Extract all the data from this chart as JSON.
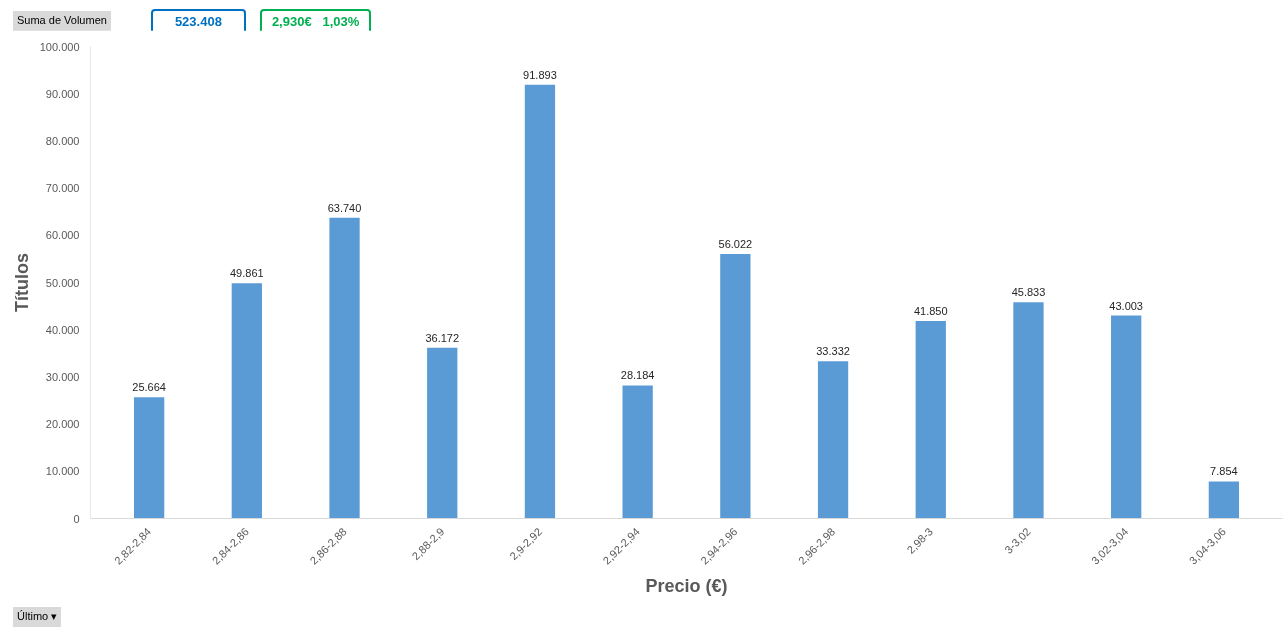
{
  "chart_data": {
    "type": "bar",
    "xlabel": "Precio (€)",
    "ylabel": "Títulos",
    "categories": [
      "2,82-2,84",
      "2,84-2,86",
      "2,86-2,88",
      "2,88-2,9",
      "2,9-2,92",
      "2,92-2,94",
      "2,94-2,96",
      "2,96-2,98",
      "2,98-3",
      "3-3,02",
      "3,02-3,04",
      "3,04-3,06"
    ],
    "values": [
      25664,
      49861,
      63740,
      36172,
      91893,
      28184,
      56022,
      33332,
      41850,
      45833,
      43003,
      7854
    ],
    "color": "#5b9bd5",
    "ylim": [
      0,
      100000
    ],
    "yticks": [
      0,
      {
        "value": 10000,
        "label": "10.000"
      },
      {
        "value": 20000,
        "label": "20.000"
      },
      {
        "value": 30000,
        "label": "30.000"
      },
      {
        "value": 40000,
        "label": "40.000"
      },
      {
        "value": 50000,
        "label": "50.000"
      },
      {
        "value": 60000,
        "label": "60.000"
      },
      {
        "value": 70000,
        "label": "70.000"
      },
      {
        "value": 80000,
        "label": "80.000"
      },
      {
        "value": 90000,
        "label": "90.000"
      },
      {
        "value": 100000,
        "label": "100.000"
      }
    ],
    "value_labels": [
      "25.664",
      "49.861",
      "63.740",
      "36.172",
      "91.893",
      "28.184",
      "56.022",
      "33.332",
      "41.850",
      "45.833",
      "43.003",
      "7.854"
    ],
    "grid": false,
    "annotations": [
      "Suma de Volumen",
      "523.408",
      "2,930€   1,03%",
      "Último ▾"
    ]
  }
}
